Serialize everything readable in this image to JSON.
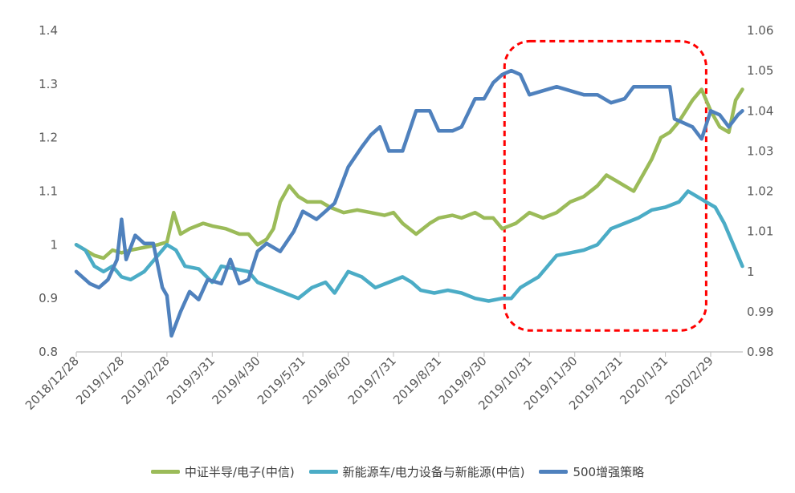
{
  "chart_data": {
    "type": "line",
    "x_labels": [
      "2018/12/28",
      "2019/1/28",
      "2019/2/28",
      "2019/3/31",
      "2019/4/30",
      "2019/5/31",
      "2019/6/30",
      "2019/7/31",
      "2019/8/31",
      "2019/9/30",
      "2019/10/31",
      "2019/11/30",
      "2019/12/31",
      "2020/1/31",
      "2020/2/29"
    ],
    "y_left": {
      "ylim": [
        0.8,
        1.4
      ],
      "ticks": [
        "0.8",
        "0.9",
        "1",
        "1.1",
        "1.2",
        "1.3",
        "1.4"
      ]
    },
    "y_right": {
      "ylim": [
        0.98,
        1.06
      ],
      "ticks": [
        "0.98",
        "0.99",
        "1",
        "1.01",
        "1.02",
        "1.03",
        "1.04",
        "1.05",
        "1.06"
      ]
    },
    "series": [
      {
        "name": "中证半导/电子(中信)",
        "axis": "left",
        "color": "#9BBB59",
        "points": [
          [
            0,
            1.0
          ],
          [
            0.2,
            0.99
          ],
          [
            0.4,
            0.98
          ],
          [
            0.6,
            0.975
          ],
          [
            0.8,
            0.99
          ],
          [
            1.0,
            0.985
          ],
          [
            1.2,
            0.99
          ],
          [
            1.5,
            0.995
          ],
          [
            1.8,
            1.0
          ],
          [
            2.0,
            1.005
          ],
          [
            2.15,
            1.06
          ],
          [
            2.3,
            1.02
          ],
          [
            2.5,
            1.03
          ],
          [
            2.8,
            1.04
          ],
          [
            3.0,
            1.035
          ],
          [
            3.3,
            1.03
          ],
          [
            3.6,
            1.02
          ],
          [
            3.8,
            1.02
          ],
          [
            4.0,
            1.0
          ],
          [
            4.2,
            1.01
          ],
          [
            4.35,
            1.03
          ],
          [
            4.5,
            1.08
          ],
          [
            4.7,
            1.11
          ],
          [
            4.9,
            1.09
          ],
          [
            5.1,
            1.08
          ],
          [
            5.4,
            1.08
          ],
          [
            5.6,
            1.07
          ],
          [
            5.9,
            1.06
          ],
          [
            6.2,
            1.065
          ],
          [
            6.5,
            1.06
          ],
          [
            6.8,
            1.055
          ],
          [
            7.0,
            1.06
          ],
          [
            7.2,
            1.04
          ],
          [
            7.5,
            1.02
          ],
          [
            7.8,
            1.04
          ],
          [
            8.0,
            1.05
          ],
          [
            8.3,
            1.055
          ],
          [
            8.5,
            1.05
          ],
          [
            8.8,
            1.06
          ],
          [
            9.0,
            1.05
          ],
          [
            9.2,
            1.05
          ],
          [
            9.4,
            1.03
          ],
          [
            9.7,
            1.04
          ],
          [
            10.0,
            1.06
          ],
          [
            10.3,
            1.05
          ],
          [
            10.6,
            1.06
          ],
          [
            10.9,
            1.08
          ],
          [
            11.2,
            1.09
          ],
          [
            11.5,
            1.11
          ],
          [
            11.7,
            1.13
          ],
          [
            11.9,
            1.12
          ],
          [
            12.1,
            1.11
          ],
          [
            12.3,
            1.1
          ],
          [
            12.5,
            1.13
          ],
          [
            12.7,
            1.16
          ],
          [
            12.9,
            1.2
          ],
          [
            13.1,
            1.21
          ],
          [
            13.3,
            1.23
          ],
          [
            13.6,
            1.27
          ],
          [
            13.8,
            1.29
          ],
          [
            14.0,
            1.25
          ],
          [
            14.2,
            1.22
          ],
          [
            14.4,
            1.21
          ],
          [
            14.55,
            1.27
          ],
          [
            14.7,
            1.29
          ]
        ]
      },
      {
        "name": "新能源车/电力设备与新能源(中信)",
        "axis": "left",
        "color": "#4BACC6",
        "points": [
          [
            0,
            1.0
          ],
          [
            0.2,
            0.99
          ],
          [
            0.4,
            0.96
          ],
          [
            0.6,
            0.95
          ],
          [
            0.8,
            0.96
          ],
          [
            1.0,
            0.94
          ],
          [
            1.2,
            0.935
          ],
          [
            1.5,
            0.95
          ],
          [
            1.8,
            0.98
          ],
          [
            2.0,
            1.0
          ],
          [
            2.2,
            0.99
          ],
          [
            2.4,
            0.96
          ],
          [
            2.7,
            0.955
          ],
          [
            3.0,
            0.93
          ],
          [
            3.2,
            0.96
          ],
          [
            3.5,
            0.955
          ],
          [
            3.8,
            0.95
          ],
          [
            4.0,
            0.93
          ],
          [
            4.3,
            0.92
          ],
          [
            4.6,
            0.91
          ],
          [
            4.9,
            0.9
          ],
          [
            5.2,
            0.92
          ],
          [
            5.5,
            0.93
          ],
          [
            5.7,
            0.91
          ],
          [
            6.0,
            0.95
          ],
          [
            6.3,
            0.94
          ],
          [
            6.6,
            0.92
          ],
          [
            6.9,
            0.93
          ],
          [
            7.2,
            0.94
          ],
          [
            7.4,
            0.93
          ],
          [
            7.6,
            0.915
          ],
          [
            7.9,
            0.91
          ],
          [
            8.2,
            0.915
          ],
          [
            8.5,
            0.91
          ],
          [
            8.8,
            0.9
          ],
          [
            9.1,
            0.895
          ],
          [
            9.4,
            0.9
          ],
          [
            9.6,
            0.9
          ],
          [
            9.8,
            0.92
          ],
          [
            10.0,
            0.93
          ],
          [
            10.2,
            0.94
          ],
          [
            10.4,
            0.96
          ],
          [
            10.6,
            0.98
          ],
          [
            10.9,
            0.985
          ],
          [
            11.2,
            0.99
          ],
          [
            11.5,
            1.0
          ],
          [
            11.8,
            1.03
          ],
          [
            12.1,
            1.04
          ],
          [
            12.4,
            1.05
          ],
          [
            12.7,
            1.065
          ],
          [
            13.0,
            1.07
          ],
          [
            13.3,
            1.08
          ],
          [
            13.5,
            1.1
          ],
          [
            13.7,
            1.09
          ],
          [
            13.9,
            1.08
          ],
          [
            14.1,
            1.07
          ],
          [
            14.3,
            1.04
          ],
          [
            14.5,
            1.0
          ],
          [
            14.7,
            0.96
          ]
        ]
      },
      {
        "name": "500增强策略",
        "axis": "right",
        "color": "#4F81BD",
        "points": [
          [
            0,
            1.0
          ],
          [
            0.3,
            0.997
          ],
          [
            0.5,
            0.996
          ],
          [
            0.7,
            0.998
          ],
          [
            0.9,
            1.003
          ],
          [
            1.0,
            1.013
          ],
          [
            1.1,
            1.003
          ],
          [
            1.3,
            1.009
          ],
          [
            1.5,
            1.007
          ],
          [
            1.7,
            1.007
          ],
          [
            1.9,
            0.996
          ],
          [
            2.0,
            0.994
          ],
          [
            2.1,
            0.984
          ],
          [
            2.3,
            0.99
          ],
          [
            2.5,
            0.995
          ],
          [
            2.7,
            0.993
          ],
          [
            2.9,
            0.998
          ],
          [
            3.2,
            0.997
          ],
          [
            3.4,
            1.003
          ],
          [
            3.6,
            0.997
          ],
          [
            3.8,
            0.998
          ],
          [
            4.0,
            1.005
          ],
          [
            4.2,
            1.007
          ],
          [
            4.5,
            1.005
          ],
          [
            4.8,
            1.01
          ],
          [
            5.0,
            1.015
          ],
          [
            5.3,
            1.013
          ],
          [
            5.5,
            1.015
          ],
          [
            5.7,
            1.017
          ],
          [
            6.0,
            1.026
          ],
          [
            6.3,
            1.031
          ],
          [
            6.5,
            1.034
          ],
          [
            6.7,
            1.036
          ],
          [
            6.9,
            1.03
          ],
          [
            7.2,
            1.03
          ],
          [
            7.5,
            1.04
          ],
          [
            7.8,
            1.04
          ],
          [
            8.0,
            1.035
          ],
          [
            8.3,
            1.035
          ],
          [
            8.5,
            1.036
          ],
          [
            8.8,
            1.043
          ],
          [
            9.0,
            1.043
          ],
          [
            9.2,
            1.047
          ],
          [
            9.4,
            1.049
          ],
          [
            9.6,
            1.05
          ],
          [
            9.8,
            1.049
          ],
          [
            10.0,
            1.044
          ],
          [
            10.3,
            1.045
          ],
          [
            10.6,
            1.046
          ],
          [
            10.9,
            1.045
          ],
          [
            11.2,
            1.044
          ],
          [
            11.5,
            1.044
          ],
          [
            11.8,
            1.042
          ],
          [
            12.1,
            1.043
          ],
          [
            12.3,
            1.046
          ],
          [
            12.6,
            1.046
          ],
          [
            12.9,
            1.046
          ],
          [
            13.1,
            1.046
          ],
          [
            13.2,
            1.038
          ],
          [
            13.4,
            1.037
          ],
          [
            13.6,
            1.036
          ],
          [
            13.8,
            1.033
          ],
          [
            14.0,
            1.04
          ],
          [
            14.2,
            1.039
          ],
          [
            14.4,
            1.036
          ],
          [
            14.6,
            1.039
          ],
          [
            14.7,
            1.04
          ]
        ]
      }
    ],
    "annotation": {
      "shape": "dashed-rounded-rect",
      "color": "#FF0000",
      "x_range": [
        9.45,
        13.9
      ],
      "y_range": [
        0.84,
        1.38
      ]
    },
    "grid": false,
    "legend_position": "bottom"
  }
}
